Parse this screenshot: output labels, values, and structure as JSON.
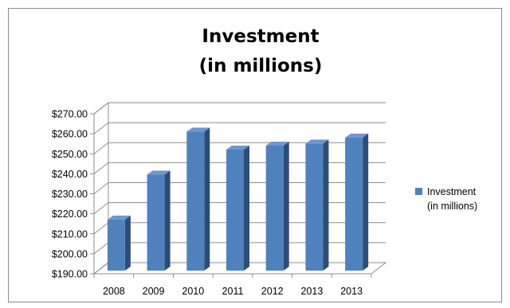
{
  "chart_data": {
    "type": "bar",
    "title": [
      "Investment",
      "(in millions)"
    ],
    "categories": [
      "2008",
      "2009",
      "2010",
      "2011",
      "2012",
      "2013",
      "2013"
    ],
    "series": [
      {
        "name": "Investment (in millions)",
        "legend_lines": [
          "Investment",
          "(in millions)"
        ],
        "color": "#4f81bd",
        "values": [
          217.5,
          240,
          261.5,
          252.5,
          254.5,
          255.5,
          258.5
        ]
      }
    ],
    "yticks": [
      "$190.00",
      "$200.00",
      "$210.00",
      "$220.00",
      "$230.00",
      "$240.00",
      "$250.00",
      "$260.00",
      "$270.00"
    ],
    "ylim": [
      190,
      270
    ],
    "grid": true,
    "legend": "right",
    "style": "3d-column"
  }
}
